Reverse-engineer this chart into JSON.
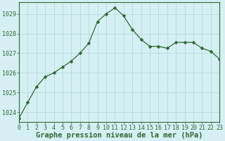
{
  "x": [
    0,
    1,
    2,
    3,
    4,
    5,
    6,
    7,
    8,
    9,
    10,
    11,
    12,
    13,
    14,
    15,
    16,
    17,
    18,
    19,
    20,
    21,
    22,
    23
  ],
  "y": [
    1023.7,
    1024.5,
    1025.3,
    1025.8,
    1026.0,
    1026.3,
    1026.6,
    1027.0,
    1027.5,
    1028.6,
    1029.0,
    1029.3,
    1028.9,
    1028.2,
    1027.7,
    1027.35,
    1027.35,
    1027.25,
    1027.55,
    1027.55,
    1027.55,
    1027.25,
    1027.1,
    1026.7
  ],
  "line_color": "#2d6a2d",
  "marker": "D",
  "marker_size": 2.5,
  "background_color": "#d6eff5",
  "grid_color": "#b0d8d8",
  "xlabel": "Graphe pression niveau de la mer (hPa)",
  "ylim": [
    1023.5,
    1029.6
  ],
  "xlim": [
    0,
    23
  ],
  "yticks": [
    1024,
    1025,
    1026,
    1027,
    1028,
    1029
  ],
  "xticks": [
    0,
    1,
    2,
    3,
    4,
    5,
    6,
    7,
    8,
    9,
    10,
    11,
    12,
    13,
    14,
    15,
    16,
    17,
    18,
    19,
    20,
    21,
    22,
    23
  ],
  "xlabel_fontsize": 7.5,
  "tick_fontsize": 6
}
